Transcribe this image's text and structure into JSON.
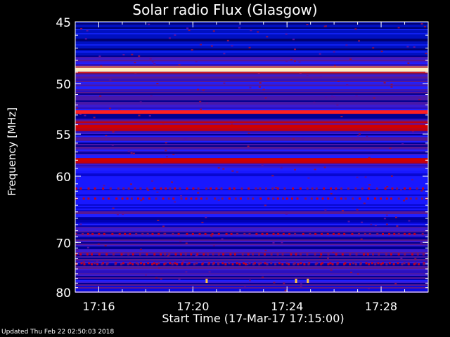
{
  "chart_data": {
    "type": "heatmap",
    "title": "Solar radio Flux (Glasgow)",
    "xlabel": "Start Time (17-Mar-17 17:15:00)",
    "ylabel": "Frequency [MHz]",
    "x_ticks": [
      "17:16",
      "17:20",
      "17:24",
      "17:28"
    ],
    "x_tick_minutes": [
      1,
      5,
      9,
      13
    ],
    "xlim_minutes": [
      0,
      15
    ],
    "y_ticks": [
      45,
      50,
      55,
      60,
      70,
      80
    ],
    "ylim_mhz": [
      45,
      80
    ],
    "y_scale": "reciprocal",
    "colormap": [
      "#000018",
      "#0000c8",
      "#1a1aff",
      "#4a1aa0",
      "#9a0a40",
      "#c00000",
      "#ff2020",
      "#ffe0a0",
      "#ffffff"
    ],
    "bright_bands_mhz": [
      {
        "freq": 48.8,
        "level": 1.0
      },
      {
        "freq": 52.7,
        "level": 0.85
      },
      {
        "freq": 54.2,
        "level": 0.8
      },
      {
        "freq": 58.0,
        "level": 0.7
      }
    ],
    "bursts": [
      {
        "time_min": 5.6,
        "freq": 77.5
      },
      {
        "time_min": 9.4,
        "freq": 77.5
      },
      {
        "time_min": 9.9,
        "freq": 77.5
      }
    ]
  },
  "footer": "Updated Thu Feb 22 02:50:03 2018"
}
